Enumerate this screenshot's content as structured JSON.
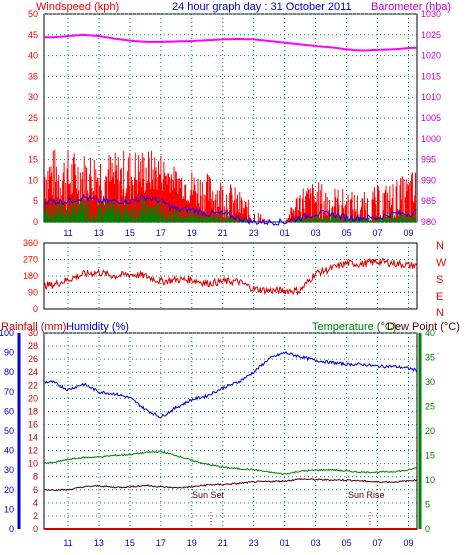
{
  "colors": {
    "wind": "#ff0000",
    "gust": "#ff0000",
    "wind_avg": "#0000ff",
    "wind_bar": "#008000",
    "baro": "#ff00ff",
    "dir": "#dd0000",
    "hum": "#0000cc",
    "temp": "#008000",
    "dew": "#550000",
    "rain": "#cc0000",
    "grid": "#008080",
    "axis_left": "#0000cc",
    "header_red": "#ff0000",
    "header_blue": "#0000cc",
    "header_magenta": "#cc00cc"
  },
  "top": {
    "title_left": "Windspeed (kph)",
    "title_center": "24 hour graph day : 31 October 2011",
    "title_right": "Barometer (hba)"
  },
  "time_ticks": [
    "11",
    "13",
    "15",
    "17",
    "19",
    "21",
    "23",
    "01",
    "03",
    "05",
    "07",
    "09"
  ],
  "dir_labels": [
    "N",
    "W",
    "S",
    "E",
    "N"
  ],
  "bottom": {
    "title_left1": "Rainfall (mm)",
    "title_left2": "Humidity (%)",
    "title_right1": "Temperature (°C)",
    "title_right2": "Dew Point (°C)",
    "sunset_label": "Sun Set",
    "sunrise_label": "Sun Rise"
  },
  "chart_data": [
    {
      "type": "line",
      "title": "24 hour graph day : 31 October 2011",
      "x_ticks": [
        "11",
        "13",
        "15",
        "17",
        "19",
        "21",
        "23",
        "01",
        "03",
        "05",
        "07",
        "09"
      ],
      "left_axis": {
        "label": "Windspeed (kph)",
        "range": [
          0,
          50
        ],
        "ticks": [
          0,
          5,
          10,
          15,
          20,
          25,
          30,
          35,
          40,
          45,
          50
        ]
      },
      "right_axis": {
        "label": "Barometer (hba)",
        "range": [
          980,
          1030
        ],
        "ticks": [
          980,
          985,
          990,
          995,
          1000,
          1005,
          1010,
          1015,
          1020,
          1025,
          1030
        ]
      },
      "series": [
        {
          "name": "Windspeed (kph)",
          "axis": "left",
          "x": [
            10,
            11,
            12,
            13,
            14,
            15,
            16,
            17,
            18,
            19,
            20,
            21,
            22,
            23,
            24,
            25,
            26,
            27,
            28,
            29,
            30,
            31,
            32,
            33,
            34
          ],
          "values": [
            11,
            10,
            11,
            11,
            10,
            11,
            12,
            12,
            10,
            8,
            7,
            6,
            4,
            1,
            0,
            0,
            5,
            5,
            4,
            4,
            3,
            4,
            5,
            6,
            7
          ]
        },
        {
          "name": "Wind gust",
          "axis": "left",
          "x": [
            10,
            11,
            12,
            13,
            14,
            15,
            16,
            17,
            18,
            19,
            20,
            21,
            22,
            23,
            24,
            25,
            26,
            27,
            28,
            29,
            30,
            31,
            32,
            33,
            34
          ],
          "values": [
            18,
            18,
            17,
            18,
            17,
            18,
            18,
            17,
            13,
            13,
            12,
            11,
            8,
            4,
            0,
            0,
            9,
            10,
            9,
            8,
            7,
            9,
            10,
            12,
            15
          ]
        },
        {
          "name": "Average wind",
          "axis": "left",
          "x": [
            10,
            11,
            12,
            13,
            14,
            15,
            16,
            17,
            18,
            19,
            20,
            21,
            22,
            23,
            24,
            25,
            26,
            27,
            28,
            29,
            30,
            31,
            32,
            33,
            34
          ],
          "values": [
            5,
            5,
            6,
            5,
            5,
            5,
            6,
            5,
            3,
            3,
            2,
            2,
            1,
            0,
            0,
            0,
            1,
            2,
            2,
            1,
            1,
            1,
            2,
            2,
            3
          ]
        },
        {
          "name": "Barometer (hba)",
          "axis": "right",
          "x": [
            10,
            11,
            12,
            13,
            14,
            15,
            16,
            17,
            18,
            19,
            20,
            21,
            22,
            23,
            24,
            25,
            26,
            27,
            28,
            29,
            30,
            31,
            32,
            33,
            34
          ],
          "values": [
            1024.4,
            1024.7,
            1025.0,
            1024.7,
            1024.1,
            1023.6,
            1023.3,
            1023.3,
            1023.4,
            1023.5,
            1023.7,
            1023.9,
            1024.0,
            1023.9,
            1023.5,
            1023.1,
            1022.7,
            1022.3,
            1022.0,
            1021.5,
            1021.2,
            1021.4,
            1021.5,
            1021.8,
            1022.0
          ]
        }
      ]
    },
    {
      "type": "line",
      "x_ticks": [
        "11",
        "13",
        "15",
        "17",
        "19",
        "21",
        "23",
        "01",
        "03",
        "05",
        "07",
        "09"
      ],
      "left_axis": {
        "range": [
          0,
          360
        ],
        "ticks": [
          0,
          90,
          180,
          270,
          360
        ]
      },
      "right_axis": {
        "labels": [
          "N",
          "W",
          "S",
          "E",
          "N"
        ]
      },
      "series": [
        {
          "name": "Wind direction",
          "x": [
            10,
            11,
            12,
            13,
            14,
            15,
            16,
            17,
            18,
            19,
            20,
            21,
            22,
            23,
            24,
            25,
            26,
            27,
            28,
            29,
            30,
            31,
            32,
            33,
            34
          ],
          "values": [
            130,
            160,
            190,
            200,
            180,
            190,
            180,
            150,
            160,
            160,
            140,
            150,
            150,
            110,
            100,
            100,
            100,
            195,
            220,
            250,
            245,
            260,
            250,
            240,
            230
          ]
        }
      ]
    },
    {
      "type": "line",
      "x_ticks": [
        "11",
        "13",
        "15",
        "17",
        "19",
        "21",
        "23",
        "01",
        "03",
        "05",
        "07",
        "09"
      ],
      "axes": [
        {
          "label": "Rainfall (mm)",
          "range": [
            0,
            30
          ],
          "ticks": [
            0,
            2,
            4,
            6,
            8,
            10,
            12,
            14,
            16,
            18,
            20,
            22,
            24,
            26,
            28,
            30
          ]
        },
        {
          "label": "Humidity (%)",
          "range": [
            0,
            100
          ],
          "ticks": [
            0,
            10,
            20,
            30,
            40,
            50,
            60,
            70,
            80,
            90,
            100
          ]
        },
        {
          "label": "Temperature (°C)",
          "range": [
            0,
            40
          ],
          "ticks": [
            0,
            5,
            10,
            15,
            20,
            25,
            30,
            35,
            40
          ]
        }
      ],
      "annotations": [
        "Sun Set",
        "Sun Rise"
      ],
      "series": [
        {
          "name": "Humidity (%)",
          "axis": "Humidity (%)",
          "x": [
            10,
            11,
            12,
            13,
            14,
            15,
            16,
            17,
            18,
            19,
            20,
            21,
            22,
            23,
            24,
            25,
            26,
            27,
            28,
            29,
            30,
            31,
            32,
            33,
            34
          ],
          "values": [
            75,
            71,
            74,
            70,
            69,
            67,
            61,
            57,
            62,
            66,
            68,
            72,
            75,
            80,
            87,
            90,
            88,
            86,
            85,
            84,
            84,
            83,
            83,
            82,
            80
          ]
        },
        {
          "name": "Temperature (°C)",
          "axis": "Temperature (°C)",
          "x": [
            10,
            11,
            12,
            13,
            14,
            15,
            16,
            17,
            18,
            19,
            20,
            21,
            22,
            23,
            24,
            25,
            26,
            27,
            28,
            29,
            30,
            31,
            32,
            33,
            34
          ],
          "values": [
            13.5,
            14.2,
            14.6,
            14.7,
            15.0,
            15.2,
            15.6,
            15.8,
            15.0,
            14.0,
            13.2,
            12.6,
            12.3,
            12.1,
            11.6,
            11.2,
            11.8,
            12.0,
            12.1,
            11.8,
            11.6,
            11.6,
            11.7,
            12.0,
            13.0
          ]
        },
        {
          "name": "Dew Point (°C)",
          "axis": "Temperature (°C)",
          "x": [
            10,
            11,
            12,
            13,
            14,
            15,
            16,
            17,
            18,
            19,
            20,
            21,
            22,
            23,
            24,
            25,
            26,
            27,
            28,
            29,
            30,
            31,
            32,
            33,
            34
          ],
          "values": [
            8.0,
            8.0,
            8.6,
            8.8,
            8.5,
            8.6,
            8.9,
            8.6,
            8.4,
            8.6,
            9.0,
            9.1,
            9.3,
            9.6,
            9.7,
            9.8,
            10.2,
            10.1,
            10.0,
            10.0,
            9.8,
            9.6,
            9.6,
            9.8,
            10.3
          ]
        },
        {
          "name": "Rainfall (mm)",
          "axis": "Rainfall (mm)",
          "x": [
            10,
            34
          ],
          "values": [
            0,
            0
          ]
        }
      ]
    }
  ]
}
